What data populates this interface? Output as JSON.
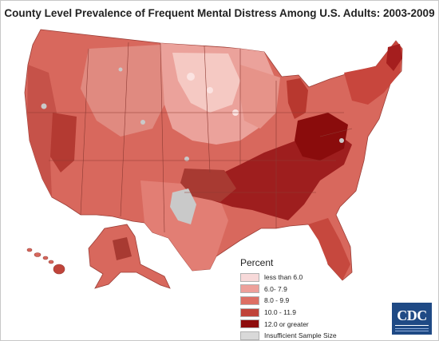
{
  "title": "County Level Prevalence of Frequent Mental Distress Among U.S. Adults: 2003-2009",
  "legend": {
    "heading": "Percent",
    "items": [
      {
        "label": "less than 6.0",
        "color": "#f7d9d9"
      },
      {
        "label": "6.0- 7.9",
        "color": "#eda09a"
      },
      {
        "label": "8.0 - 9.9",
        "color": "#dd6f64"
      },
      {
        "label": "10.0 - 11.9",
        "color": "#c0443a"
      },
      {
        "label": "12.0 or greater",
        "color": "#8e0d0d"
      },
      {
        "label": "Insufficient Sample Size",
        "color": "#d9d9d9"
      }
    ]
  },
  "logo": {
    "text": "CDC",
    "background": "#1f4a85"
  }
}
